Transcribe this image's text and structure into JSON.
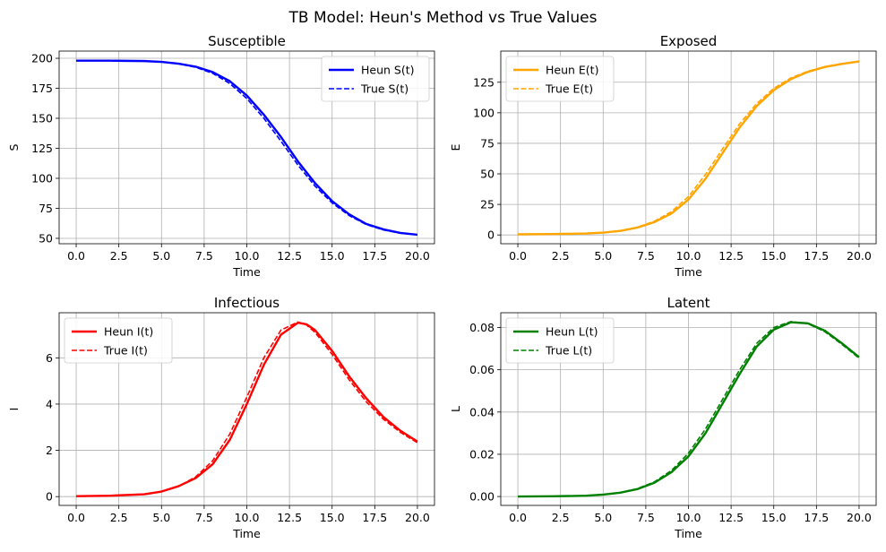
{
  "figure_title": "TB Model: Heun's Method vs True Values",
  "chart_data": [
    {
      "type": "line",
      "title": "Susceptible",
      "xlabel": "Time",
      "ylabel": "S",
      "xlim": [
        -1,
        21
      ],
      "ylim": [
        45.5,
        206
      ],
      "xticks": [
        0,
        2.5,
        5,
        7.5,
        10,
        12.5,
        15,
        17.5,
        20
      ],
      "xtick_labels": [
        "0.0",
        "2.5",
        "5.0",
        "7.5",
        "10.0",
        "12.5",
        "15.0",
        "17.5",
        "20.0"
      ],
      "yticks": [
        50,
        75,
        100,
        125,
        150,
        175,
        200
      ],
      "ytick_labels": [
        "50",
        "75",
        "100",
        "125",
        "150",
        "175",
        "200"
      ],
      "grid": true,
      "legend_position": "top-right",
      "color": "#0000ff",
      "x": [
        0,
        2,
        4,
        5,
        6,
        7,
        8,
        9,
        10,
        11,
        12,
        13,
        14,
        15,
        16,
        17,
        18,
        19,
        20
      ],
      "series": [
        {
          "name": "Heun S(t)",
          "style": "solid",
          "values": [
            198,
            198,
            197.7,
            197,
            195.5,
            193,
            188.5,
            181,
            169,
            153,
            134.5,
            114,
            96,
            81,
            70,
            62,
            57.5,
            54.5,
            53
          ]
        },
        {
          "name": "True S(t)",
          "style": "dashed",
          "values": [
            198,
            198,
            197.7,
            197,
            195.5,
            192.5,
            187.5,
            179,
            166.5,
            150,
            131,
            111,
            93.5,
            79.5,
            69,
            61.5,
            57,
            54.3,
            53
          ]
        }
      ]
    },
    {
      "type": "line",
      "title": "Exposed",
      "xlabel": "Time",
      "ylabel": "E",
      "xlim": [
        -1,
        21
      ],
      "ylim": [
        -7.2,
        150.5
      ],
      "xticks": [
        0,
        2.5,
        5,
        7.5,
        10,
        12.5,
        15,
        17.5,
        20
      ],
      "xtick_labels": [
        "0.0",
        "2.5",
        "5.0",
        "7.5",
        "10.0",
        "12.5",
        "15.0",
        "17.5",
        "20.0"
      ],
      "yticks": [
        0,
        25,
        50,
        75,
        100,
        125
      ],
      "ytick_labels": [
        "0",
        "25",
        "50",
        "75",
        "100",
        "125"
      ],
      "grid": true,
      "legend_position": "top-left",
      "color": "#ffa500",
      "x": [
        0,
        2,
        4,
        5,
        6,
        7,
        8,
        9,
        10,
        11,
        12,
        13,
        14,
        15,
        16,
        17,
        18,
        19,
        20
      ],
      "series": [
        {
          "name": "Heun E(t)",
          "style": "solid",
          "values": [
            0.5,
            0.7,
            1.2,
            1.9,
            3.3,
            6,
            10.5,
            17.5,
            29,
            46,
            67,
            88,
            105.5,
            118.5,
            127.5,
            133.5,
            137.5,
            140,
            142
          ]
        },
        {
          "name": "True E(t)",
          "style": "dashed",
          "values": [
            0.5,
            0.7,
            1.2,
            2,
            3.5,
            6.3,
            11.2,
            19,
            31.5,
            49.5,
            70.5,
            91,
            107.5,
            120,
            128.5,
            134,
            137.8,
            140.2,
            142
          ]
        }
      ]
    },
    {
      "type": "line",
      "title": "Infectious",
      "xlabel": "Time",
      "ylabel": "I",
      "xlim": [
        -1,
        21
      ],
      "ylim": [
        -0.38,
        7.95
      ],
      "xticks": [
        0,
        2.5,
        5,
        7.5,
        10,
        12.5,
        15,
        17.5,
        20
      ],
      "xtick_labels": [
        "0.0",
        "2.5",
        "5.0",
        "7.5",
        "10.0",
        "12.5",
        "15.0",
        "17.5",
        "20.0"
      ],
      "yticks": [
        0,
        2,
        4,
        6
      ],
      "ytick_labels": [
        "0",
        "2",
        "4",
        "6"
      ],
      "grid": true,
      "legend_position": "top-left",
      "color": "#ff0000",
      "x": [
        0,
        2,
        4,
        5,
        6,
        7,
        8,
        9,
        10,
        11,
        12,
        13,
        13.5,
        14,
        15,
        16,
        17,
        18,
        19,
        20
      ],
      "series": [
        {
          "name": "Heun I(t)",
          "style": "solid",
          "values": [
            0.02,
            0.04,
            0.1,
            0.22,
            0.45,
            0.8,
            1.4,
            2.45,
            4,
            5.7,
            7,
            7.52,
            7.45,
            7.2,
            6.3,
            5.2,
            4.25,
            3.45,
            2.85,
            2.38
          ]
        },
        {
          "name": "True I(t)",
          "style": "dashed",
          "values": [
            0.02,
            0.04,
            0.1,
            0.22,
            0.45,
            0.85,
            1.55,
            2.7,
            4.3,
            6,
            7.2,
            7.55,
            7.42,
            7.1,
            6.15,
            5.05,
            4.1,
            3.35,
            2.78,
            2.33
          ]
        }
      ]
    },
    {
      "type": "line",
      "title": "Latent",
      "xlabel": "Time",
      "ylabel": "L",
      "xlim": [
        -1,
        21
      ],
      "ylim": [
        -0.0042,
        0.087
      ],
      "xticks": [
        0,
        2.5,
        5,
        7.5,
        10,
        12.5,
        15,
        17.5,
        20
      ],
      "xtick_labels": [
        "0.0",
        "2.5",
        "5.0",
        "7.5",
        "10.0",
        "12.5",
        "15.0",
        "17.5",
        "20.0"
      ],
      "yticks": [
        0,
        0.02,
        0.04,
        0.06,
        0.08
      ],
      "ytick_labels": [
        "0.00",
        "0.02",
        "0.04",
        "0.06",
        "0.08"
      ],
      "grid": true,
      "legend_position": "top-left",
      "color": "#008000",
      "x": [
        0,
        2,
        4,
        5,
        6,
        7,
        8,
        9,
        10,
        11,
        12,
        13,
        14,
        15,
        16,
        17,
        18,
        19,
        20
      ],
      "series": [
        {
          "name": "Heun L(t)",
          "style": "solid",
          "values": [
            0,
            0.0001,
            0.0004,
            0.0009,
            0.0018,
            0.0035,
            0.0065,
            0.0115,
            0.019,
            0.03,
            0.044,
            0.058,
            0.071,
            0.079,
            0.0825,
            0.082,
            0.0785,
            0.0725,
            0.066
          ]
        },
        {
          "name": "True L(t)",
          "style": "dashed",
          "values": [
            0,
            0.0001,
            0.0004,
            0.0009,
            0.0019,
            0.0037,
            0.0069,
            0.0123,
            0.0205,
            0.032,
            0.046,
            0.06,
            0.0725,
            0.08,
            0.0828,
            0.0818,
            0.078,
            0.072,
            0.0655
          ]
        }
      ]
    }
  ]
}
